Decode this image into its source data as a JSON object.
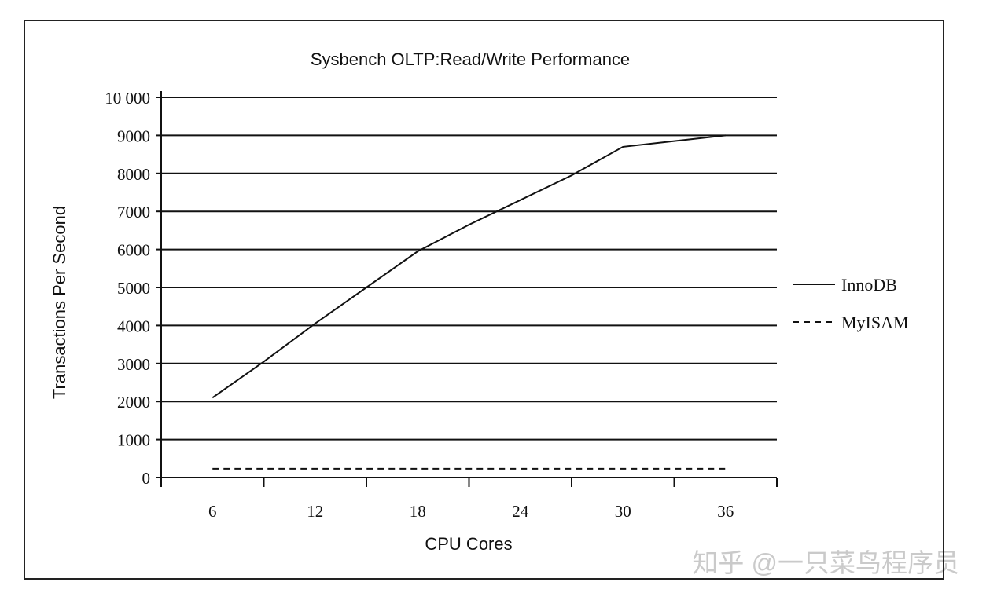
{
  "chart_data": {
    "type": "line",
    "title": "Sysbench OLTP:Read/Write Performance",
    "xlabel": "CPU Cores",
    "ylabel": "Transactions Per Second",
    "categories": [
      "6",
      "12",
      "18",
      "24",
      "30",
      "36"
    ],
    "yticks": [
      "0",
      "1000",
      "2000",
      "3000",
      "4000",
      "5000",
      "6000",
      "7000",
      "8000",
      "9000",
      "10 000"
    ],
    "ylim": [
      0,
      10000
    ],
    "grid": true,
    "legend_position": "right",
    "series": [
      {
        "name": "InnoDB",
        "style": "solid",
        "color": "#111111",
        "x": [
          6,
          9,
          12,
          15,
          18,
          21,
          24,
          27,
          30,
          33,
          36
        ],
        "values": [
          2100,
          3050,
          4050,
          5000,
          5950,
          6650,
          7300,
          7950,
          8700,
          8850,
          9000
        ]
      },
      {
        "name": "MyISAM",
        "style": "dashed",
        "color": "#111111",
        "x": [
          6,
          36
        ],
        "values": [
          230,
          230
        ]
      }
    ]
  },
  "watermark": "知乎 @一只菜鸟程序员"
}
